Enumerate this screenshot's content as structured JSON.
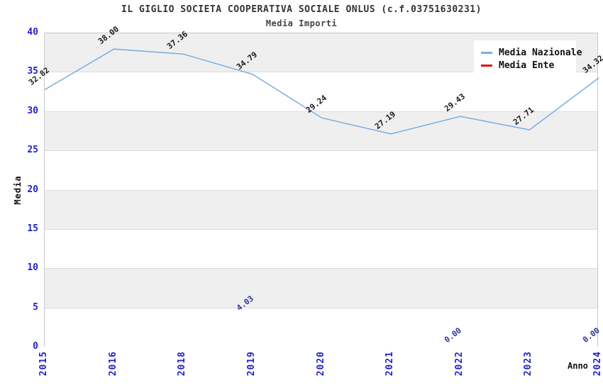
{
  "title": "IL GIGLIO SOCIETA COOPERATIVA SOCIALE ONLUS (c.f.03751630231)",
  "subtitle": "Media Importi",
  "chart_data": {
    "type": "line",
    "categories": [
      "2015",
      "2016",
      "2018",
      "2019",
      "2020",
      "2021",
      "2022",
      "2023",
      "2024"
    ],
    "series": [
      {
        "name": "Media Nazionale",
        "color": "#79ade0",
        "label_color": "#1a1a1a",
        "values": [
          32.82,
          38.0,
          37.36,
          34.79,
          29.24,
          27.19,
          29.43,
          27.71,
          34.32
        ],
        "labels": [
          "32.82",
          "38.00",
          "37.36",
          "34.79",
          "29.24",
          "27.19",
          "29.43",
          "27.71",
          "34.32"
        ]
      },
      {
        "name": "Media Ente",
        "color": "#dd1111",
        "label_color": "#333399",
        "values": [
          null,
          null,
          null,
          4.03,
          null,
          null,
          0.0,
          null,
          0.0
        ],
        "labels": [
          "",
          "",
          "",
          "4.03",
          "",
          "",
          "0.00",
          "",
          "0.00"
        ]
      }
    ],
    "xlabel": "Anno",
    "ylabel": "Media",
    "ylim": [
      0,
      40
    ],
    "yticks": [
      "0",
      "5",
      "10",
      "15",
      "20",
      "25",
      "30",
      "35",
      "40"
    ],
    "legend_position": "top-right",
    "grid": "horizontal-bands"
  },
  "colors": {
    "tick_label": "#2222cc",
    "title_text": "#333333",
    "plot_border": "#c9c9c9",
    "band_gray": "#efefef",
    "band_white": "#ffffff",
    "gridline": "#dcdcdc",
    "legend_bg": "#ffffff"
  }
}
